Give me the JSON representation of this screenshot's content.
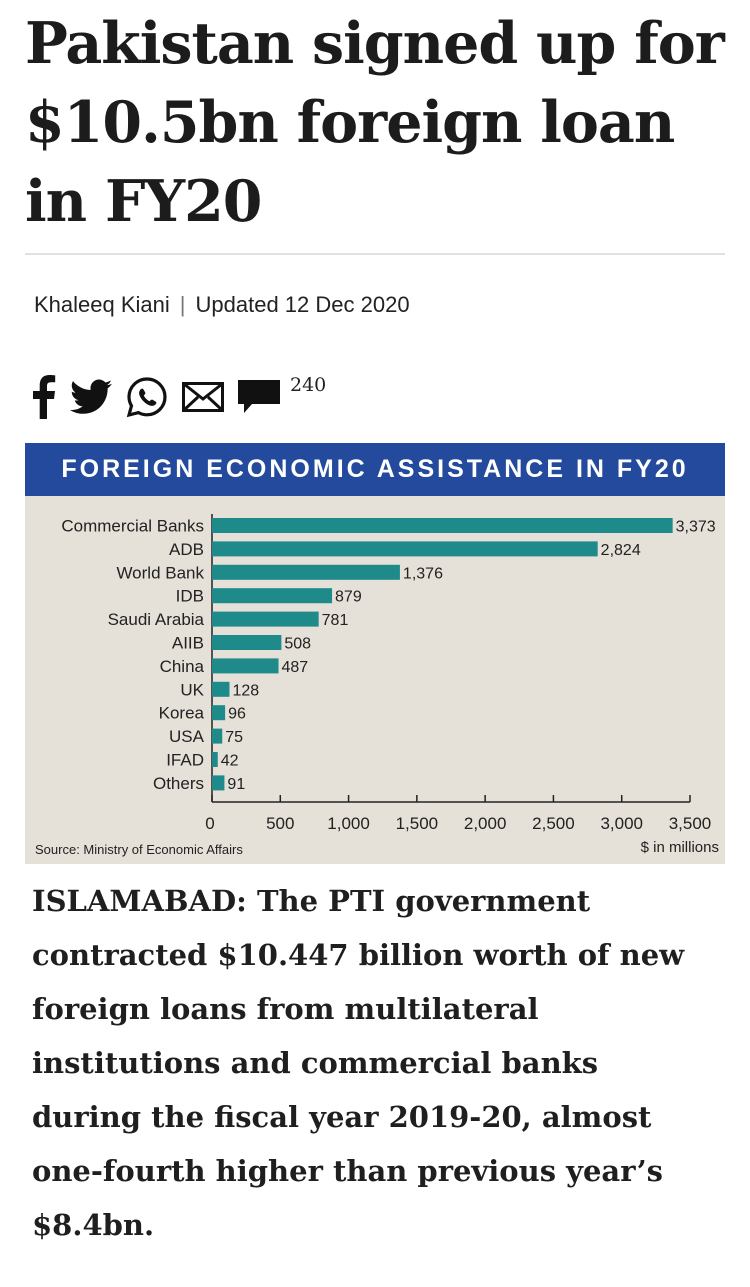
{
  "article": {
    "headline": "Pakistan signed up for $10.5bn foreign loan in FY20",
    "author": "Khaleeq Kiani",
    "updated": "Updated 12 Dec 2020",
    "comment_count": "240",
    "body": "ISLAMABAD: The PTI government contracted $10.447 billion worth of new foreign loans from multilateral institutions and commercial banks during the fiscal year 2019-20, almost one-fourth higher than previous year’s $8.4bn."
  },
  "share_icons": [
    "facebook-icon",
    "twitter-icon",
    "whatsapp-icon",
    "email-icon",
    "comment-icon"
  ],
  "colors": {
    "chart_band": "#234a9c",
    "bar": "#1f8a8a",
    "chart_bg": "#e5e0d8"
  },
  "chart_data": {
    "type": "bar",
    "orientation": "horizontal",
    "title": "FOREIGN ECONOMIC ASSISTANCE IN FY20",
    "categories": [
      "Commercial Banks",
      "ADB",
      "World Bank",
      "IDB",
      "Saudi Arabia",
      "AIIB",
      "China",
      "UK",
      "Korea",
      "USA",
      "IFAD",
      "Others"
    ],
    "values": [
      3373,
      2824,
      1376,
      879,
      781,
      508,
      487,
      128,
      96,
      75,
      42,
      91
    ],
    "value_labels": [
      "3,373",
      "2,824",
      "1,376",
      "879",
      "781",
      "508",
      "487",
      "128",
      "96",
      "75",
      "42",
      "91"
    ],
    "xlim": [
      0,
      3500
    ],
    "xticks": [
      0,
      500,
      1000,
      1500,
      2000,
      2500,
      3000,
      3500
    ],
    "xtick_labels": [
      "0",
      "500",
      "1,000",
      "1,500",
      "2,000",
      "2,500",
      "3,000",
      "3,500"
    ],
    "unit_label": "$ in millions",
    "source": "Source: Ministry of Economic Affairs",
    "grid": false
  }
}
